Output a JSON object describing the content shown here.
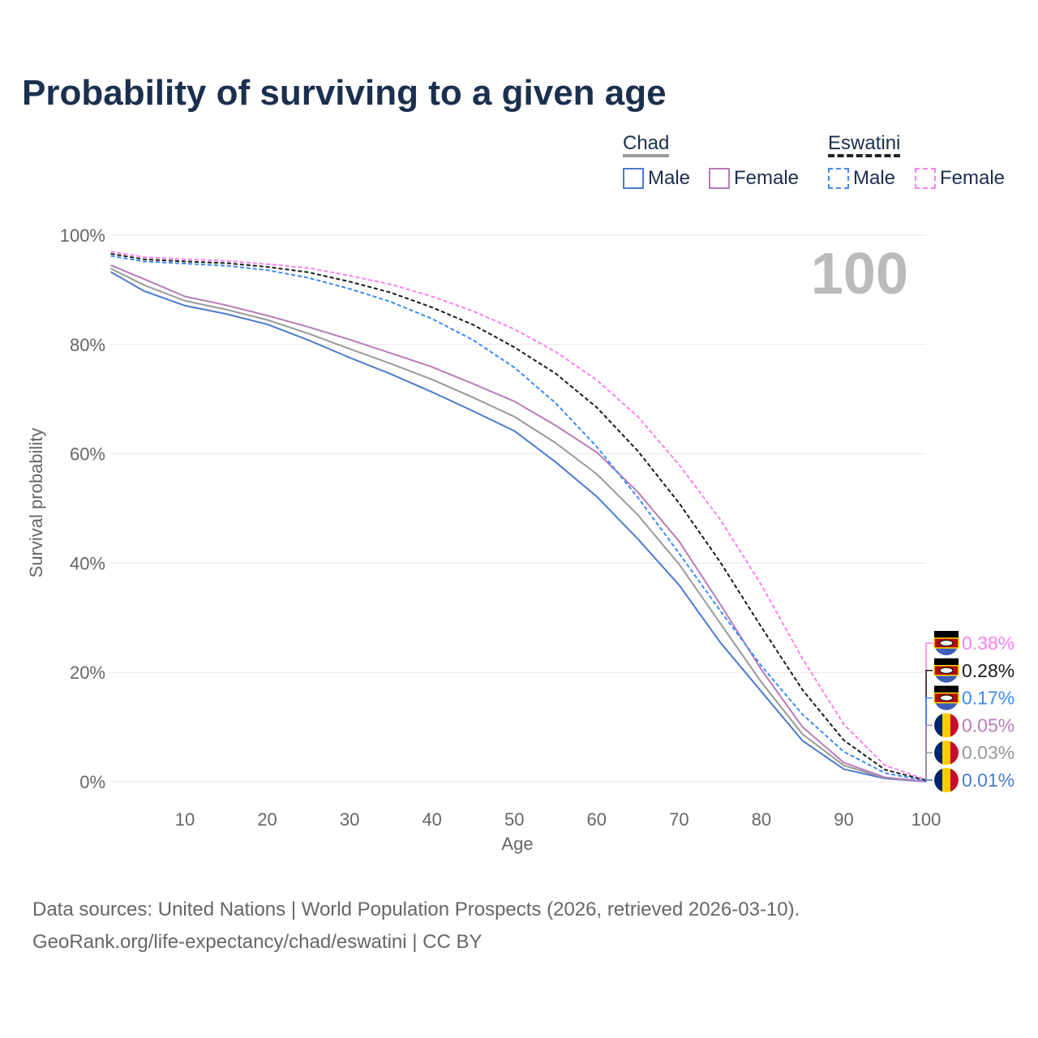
{
  "chart_data": {
    "type": "line",
    "title": "Probability of surviving to a given age",
    "xlabel": "Age",
    "ylabel": "Survival probability",
    "xlim": [
      1,
      100
    ],
    "ylim": [
      0,
      100
    ],
    "x_ticks": [
      10,
      20,
      30,
      40,
      50,
      60,
      70,
      80,
      90,
      100
    ],
    "y_ticks": [
      0,
      20,
      40,
      60,
      80,
      100
    ],
    "y_tick_labels": [
      "0%",
      "20%",
      "40%",
      "60%",
      "80%",
      "100%"
    ],
    "annotation": "100",
    "grid": true,
    "legend": {
      "placement": "top-right",
      "groups": [
        {
          "name": "Chad",
          "items": [
            "Male",
            "Female"
          ]
        },
        {
          "name": "Eswatini",
          "items": [
            "Male",
            "Female"
          ]
        }
      ]
    },
    "x": [
      1,
      5,
      10,
      15,
      20,
      25,
      30,
      35,
      40,
      45,
      50,
      55,
      60,
      65,
      70,
      75,
      80,
      85,
      90,
      95,
      100
    ],
    "series": [
      {
        "name": "Eswatini Female",
        "country": "Eswatini",
        "color": "#ff7ff0",
        "dashed": true,
        "end_label": "0.38%",
        "values": [
          97,
          96,
          95.6,
          95.3,
          94.7,
          94,
          92.6,
          91,
          88.8,
          86.1,
          82.8,
          78.7,
          73.5,
          66.8,
          58,
          48,
          36,
          22.5,
          10.5,
          3,
          0.38
        ]
      },
      {
        "name": "Eswatini Total",
        "country": "Eswatini",
        "color": "#1a1a1a",
        "dashed": true,
        "end_label": "0.28%",
        "values": [
          96.6,
          95.6,
          95.2,
          94.9,
          94.2,
          93.2,
          91.5,
          89.5,
          86.8,
          83.6,
          79.5,
          74.7,
          68.5,
          60.5,
          51,
          40.2,
          28.3,
          16.8,
          7.6,
          2.2,
          0.28
        ]
      },
      {
        "name": "Eswatini Male",
        "country": "Eswatini",
        "color": "#3d8af7",
        "dashed": true,
        "end_label": "0.17%",
        "values": [
          96.2,
          95.2,
          94.8,
          94.4,
          93.6,
          92.2,
          90.2,
          87.8,
          84.7,
          80.8,
          75.8,
          69.3,
          61.3,
          52,
          41.8,
          31.3,
          21.2,
          12.3,
          5.5,
          1.6,
          0.17
        ]
      },
      {
        "name": "Chad Female",
        "country": "Chad",
        "color": "#b87cb8",
        "dashed": false,
        "end_label": "0.05%",
        "values": [
          94.5,
          92,
          88.8,
          87.2,
          85.3,
          83.2,
          80.9,
          78.4,
          75.9,
          72.8,
          69.6,
          65.2,
          60.3,
          53,
          44,
          32.5,
          20.5,
          10,
          3.5,
          0.8,
          0.05
        ]
      },
      {
        "name": "Chad Total",
        "country": "Chad",
        "color": "#999999",
        "dashed": false,
        "end_label": "0.03%",
        "values": [
          93.9,
          90.9,
          88,
          86.4,
          84.5,
          82,
          79.2,
          76.5,
          73.6,
          70.3,
          66.8,
          62,
          56.3,
          48.8,
          39.8,
          29,
          18.2,
          8.7,
          3,
          0.7,
          0.03
        ]
      },
      {
        "name": "Chad Male",
        "country": "Chad",
        "color": "#4a7bd0",
        "dashed": false,
        "end_label": "0.01%",
        "values": [
          93.3,
          89.8,
          87.1,
          85.6,
          83.7,
          80.8,
          77.6,
          74.6,
          71.3,
          67.8,
          64.2,
          58.5,
          52.2,
          44.4,
          36,
          25.5,
          16.5,
          7.5,
          2.3,
          0.6,
          0.01
        ]
      }
    ]
  },
  "footer": {
    "line1": "Data sources: United Nations | World Population Prospects (2026, retrieved 2026-03-10).",
    "line2": "GeoRank.org/life-expectancy/chad/eswatini | CC BY"
  }
}
